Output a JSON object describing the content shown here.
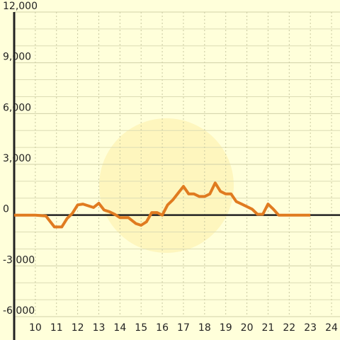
{
  "chart_data": {
    "type": "line",
    "x": [
      9,
      10,
      10.5,
      10.9,
      11.25,
      11.5,
      11.75,
      12,
      12.25,
      12.5,
      12.75,
      13,
      13.25,
      13.5,
      13.75,
      14,
      14.4,
      14.75,
      15,
      15.25,
      15.5,
      15.75,
      16,
      16.25,
      16.5,
      16.75,
      17,
      17.25,
      17.5,
      17.75,
      18,
      18.25,
      18.5,
      18.75,
      19,
      19.25,
      19.5,
      19.75,
      20,
      20.25,
      20.5,
      20.75,
      21,
      21.25,
      21.5,
      23
    ],
    "series": [
      {
        "color": "#e07b20",
        "values": [
          0,
          0,
          -50,
          -700,
          -700,
          -200,
          100,
          600,
          650,
          550,
          450,
          700,
          300,
          200,
          50,
          -150,
          -150,
          -500,
          -600,
          -400,
          150,
          150,
          0,
          600,
          900,
          1300,
          1700,
          1250,
          1250,
          1100,
          1100,
          1250,
          1900,
          1400,
          1250,
          1250,
          800,
          650,
          500,
          350,
          50,
          50,
          650,
          350,
          0,
          0
        ]
      }
    ],
    "xlim": [
      9,
      24.4
    ],
    "xticks": [
      10,
      11,
      12,
      13,
      14,
      15,
      16,
      17,
      18,
      19,
      20,
      21,
      22,
      23,
      24
    ],
    "ylim": [
      -6000,
      12000
    ],
    "yticks": [
      {
        "value": -6000,
        "label": "-6,000"
      },
      {
        "value": -3000,
        "label": "-3,000"
      },
      0,
      {
        "value": 3000,
        "label": "3,000"
      },
      {
        "value": 6000,
        "label": "6,000"
      },
      {
        "value": 9000,
        "label": "9,000"
      },
      {
        "value": 12000,
        "label": "12,000"
      }
    ],
    "minor_yticks": [
      -5000,
      -4000,
      -2000,
      -1000,
      1000,
      2000,
      4000,
      5000,
      7000,
      8000,
      10000,
      11000
    ],
    "grid": true
  }
}
